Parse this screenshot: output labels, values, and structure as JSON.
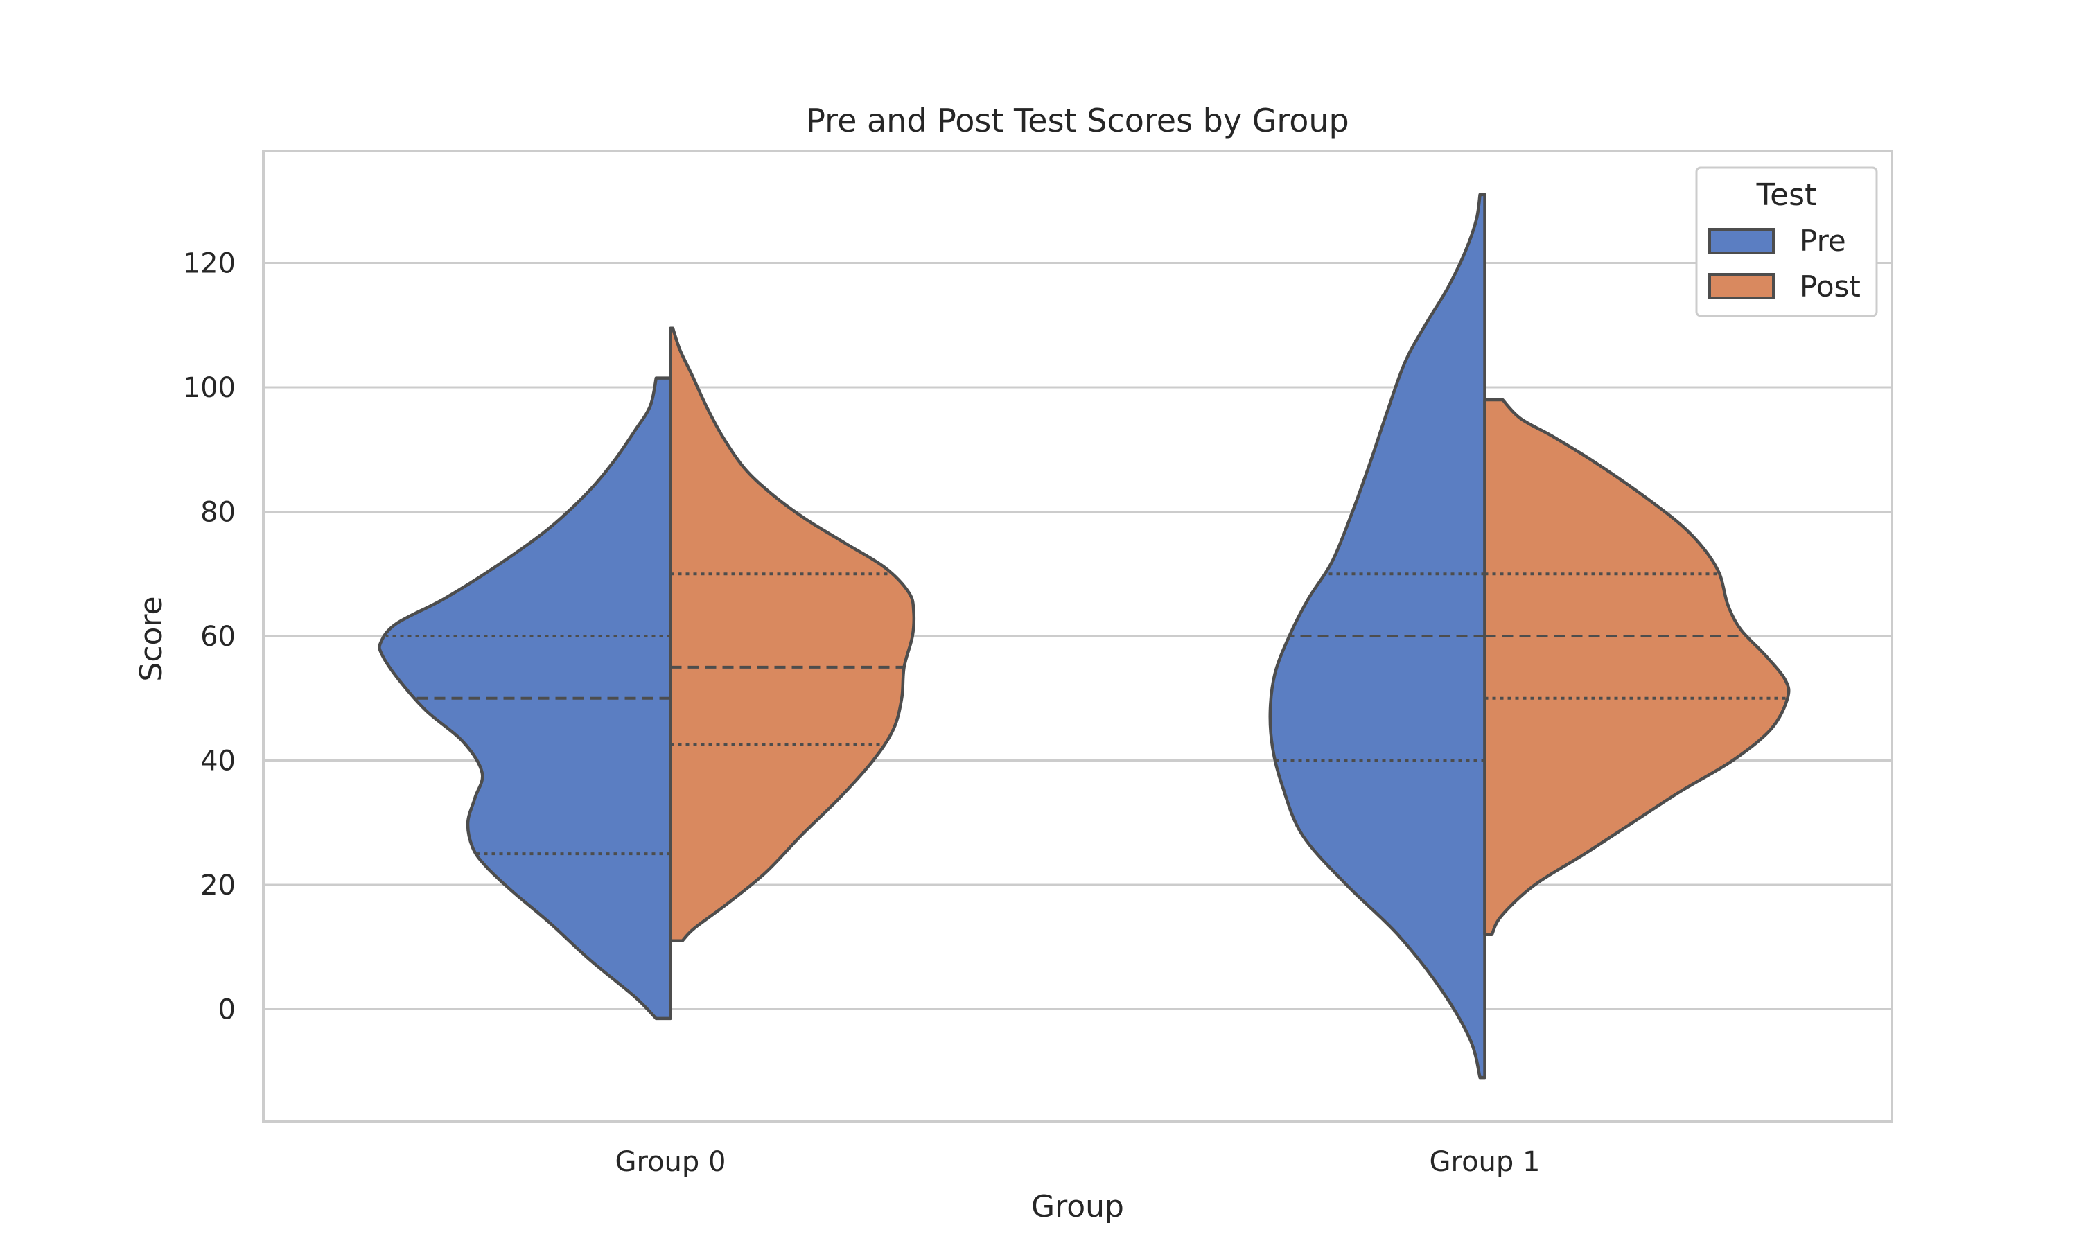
{
  "chart_data": {
    "type": "violin",
    "title": "Pre and Post Test Scores by Group",
    "xlabel": "Group",
    "ylabel": "Score",
    "categories": [
      "Group 0",
      "Group 1"
    ],
    "ylim": [
      -18,
      138
    ],
    "yticks": [
      0,
      20,
      40,
      60,
      80,
      100,
      120
    ],
    "grid": "horizontal",
    "split": true,
    "inner": "quartile",
    "legend": {
      "title": "Test",
      "placement": "top-right",
      "entries": [
        "Pre",
        "Post"
      ]
    },
    "series": [
      {
        "name": "Pre",
        "color": "#5b7ec2",
        "side": "left",
        "violins": [
          {
            "min": -1.5,
            "max": 101.5,
            "q1": 25,
            "median": 50,
            "q3": 60,
            "density": [
              [
                -1.5,
                0.12
              ],
              [
                2,
                0.3
              ],
              [
                8,
                0.68
              ],
              [
                14,
                1.02
              ],
              [
                19,
                1.33
              ],
              [
                23,
                1.55
              ],
              [
                26,
                1.66
              ],
              [
                30,
                1.7
              ],
              [
                34,
                1.64
              ],
              [
                38,
                1.58
              ],
              [
                43,
                1.74
              ],
              [
                48,
                2.05
              ],
              [
                53,
                2.28
              ],
              [
                57,
                2.42
              ],
              [
                59,
                2.43
              ],
              [
                62,
                2.3
              ],
              [
                66,
                1.9
              ],
              [
                71,
                1.48
              ],
              [
                77,
                1.04
              ],
              [
                83,
                0.7
              ],
              [
                88,
                0.48
              ],
              [
                93,
                0.3
              ],
              [
                97,
                0.17
              ],
              [
                101.5,
                0.12
              ]
            ]
          },
          {
            "min": -11,
            "max": 131,
            "q1": 40,
            "median": 60,
            "q3": 70,
            "density": [
              [
                -11,
                0.04
              ],
              [
                -5,
                0.12
              ],
              [
                3,
                0.36
              ],
              [
                12,
                0.73
              ],
              [
                20,
                1.16
              ],
              [
                28,
                1.53
              ],
              [
                36,
                1.7
              ],
              [
                42,
                1.78
              ],
              [
                48,
                1.8
              ],
              [
                54,
                1.76
              ],
              [
                60,
                1.64
              ],
              [
                66,
                1.48
              ],
              [
                72,
                1.28
              ],
              [
                80,
                1.11
              ],
              [
                88,
                0.96
              ],
              [
                96,
                0.82
              ],
              [
                104,
                0.67
              ],
              [
                110,
                0.5
              ],
              [
                116,
                0.31
              ],
              [
                122,
                0.16
              ],
              [
                127,
                0.07
              ],
              [
                131,
                0.04
              ]
            ]
          }
        ]
      },
      {
        "name": "Post",
        "color": "#d9895f",
        "side": "right",
        "violins": [
          {
            "min": 11,
            "max": 109.5,
            "q1": 42.5,
            "median": 55,
            "q3": 70,
            "density": [
              [
                11,
                0.1
              ],
              [
                13,
                0.2
              ],
              [
                17,
                0.48
              ],
              [
                22,
                0.8
              ],
              [
                28,
                1.1
              ],
              [
                34,
                1.42
              ],
              [
                40,
                1.7
              ],
              [
                45,
                1.87
              ],
              [
                50,
                1.94
              ],
              [
                55,
                1.96
              ],
              [
                60,
                2.03
              ],
              [
                64,
                2.04
              ],
              [
                67,
                2.0
              ],
              [
                71,
                1.8
              ],
              [
                75,
                1.46
              ],
              [
                79,
                1.12
              ],
              [
                83,
                0.84
              ],
              [
                87,
                0.62
              ],
              [
                92,
                0.44
              ],
              [
                97,
                0.3
              ],
              [
                102,
                0.18
              ],
              [
                106,
                0.08
              ],
              [
                109.5,
                0.02
              ]
            ]
          },
          {
            "min": 12,
            "max": 98,
            "q1": 50,
            "median": 60,
            "q3": 70,
            "density": [
              [
                12,
                0.06
              ],
              [
                15,
                0.14
              ],
              [
                20,
                0.42
              ],
              [
                25,
                0.84
              ],
              [
                30,
                1.24
              ],
              [
                35,
                1.64
              ],
              [
                40,
                2.08
              ],
              [
                45,
                2.4
              ],
              [
                50,
                2.54
              ],
              [
                53,
                2.52
              ],
              [
                57,
                2.35
              ],
              [
                61,
                2.15
              ],
              [
                65,
                2.04
              ],
              [
                70,
                1.97
              ],
              [
                74,
                1.84
              ],
              [
                78,
                1.64
              ],
              [
                83,
                1.3
              ],
              [
                88,
                0.92
              ],
              [
                92,
                0.58
              ],
              [
                95,
                0.3
              ],
              [
                98,
                0.15
              ]
            ]
          }
        ]
      }
    ]
  }
}
